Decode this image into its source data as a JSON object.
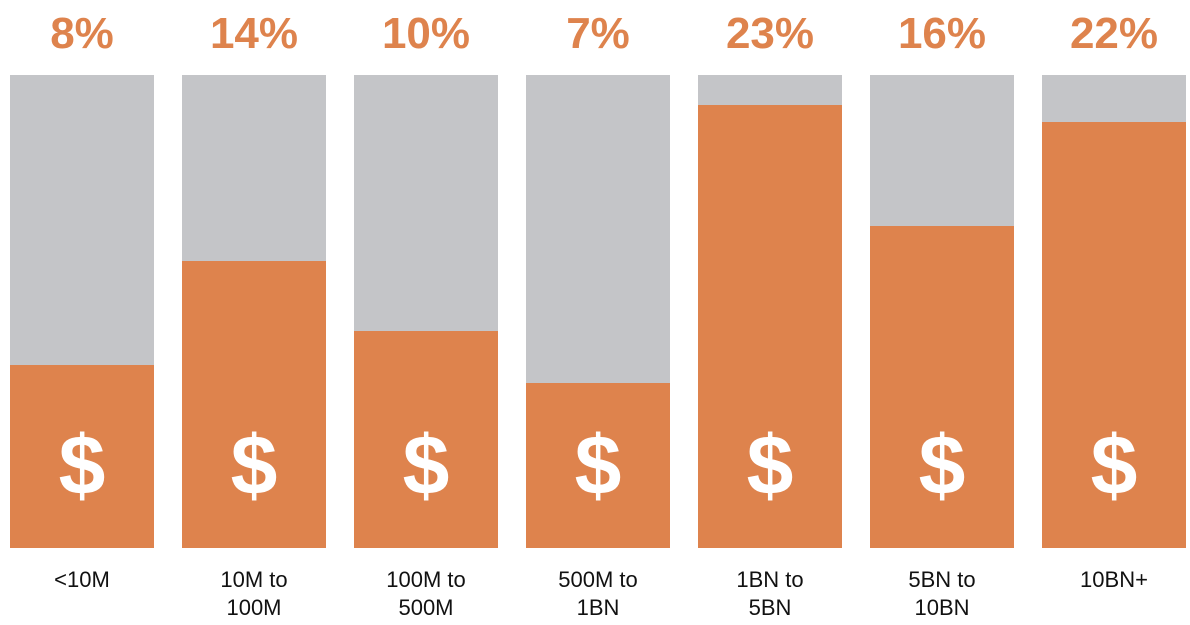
{
  "chart_data": {
    "type": "bar",
    "categories": [
      "<10M",
      "10M to 100M",
      "100M to 500M",
      "500M to 1BN",
      "1BN to 5BN",
      "5BN to 10BN",
      "10BN+"
    ],
    "values": [
      8,
      14,
      10,
      7,
      23,
      16,
      22
    ],
    "value_labels": [
      "8%",
      "14%",
      "10%",
      "7%",
      "23%",
      "16%",
      "22%"
    ],
    "symbol": "$",
    "color": "#de834d",
    "background_color": "#c4c5c8",
    "label_color": "#de834d",
    "ylim": [
      -2.5,
      24.7
    ]
  }
}
